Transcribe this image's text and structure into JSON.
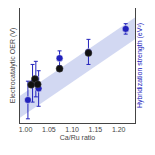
{
  "chart_data": {
    "type": "scatter",
    "xlabel": "Ca/Ru ratio",
    "ylabel": "Electrocatalytic OER (V)",
    "y2label": "Hybridization strength (eV²)",
    "xlim": [
      0.988,
      1.235
    ],
    "xticks": [
      {
        "value": 1.0,
        "label": "1.00"
      },
      {
        "value": 1.05,
        "label": "1.05"
      },
      {
        "value": 1.1,
        "label": "1.10"
      },
      {
        "value": 1.15,
        "label": "1.15"
      },
      {
        "value": 1.2,
        "label": "1.20"
      }
    ],
    "ylim": [
      0.0,
      1.1
    ],
    "y2lim": [
      0.0,
      1.1
    ],
    "tick_labels": "x",
    "grid": false,
    "series": [
      {
        "type": "band",
        "color": "#8899dd",
        "x": [
          0.988,
          1.235
        ],
        "lower": [
          0.05,
          0.8
        ],
        "upper": [
          0.26,
          1.01
        ]
      },
      {
        "type": "scatter",
        "marker": "circle",
        "color": "#2222bb",
        "x": [
          1.005,
          1.015,
          1.022,
          1.028,
          1.073,
          1.135,
          1.215
        ],
        "values": [
          0.22,
          0.38,
          0.42,
          0.33,
          0.62,
          0.68,
          0.9
        ],
        "errors": [
          0.18,
          0.18,
          0.17,
          0.17,
          0.07,
          0.12,
          0.05
        ]
      },
      {
        "type": "scatter",
        "marker": "circle",
        "color": "#111111",
        "x": [
          1.012,
          1.02,
          1.026,
          1.073,
          1.135
        ],
        "values": [
          0.365,
          0.42,
          0.37,
          0.52,
          0.67
        ]
      }
    ]
  }
}
